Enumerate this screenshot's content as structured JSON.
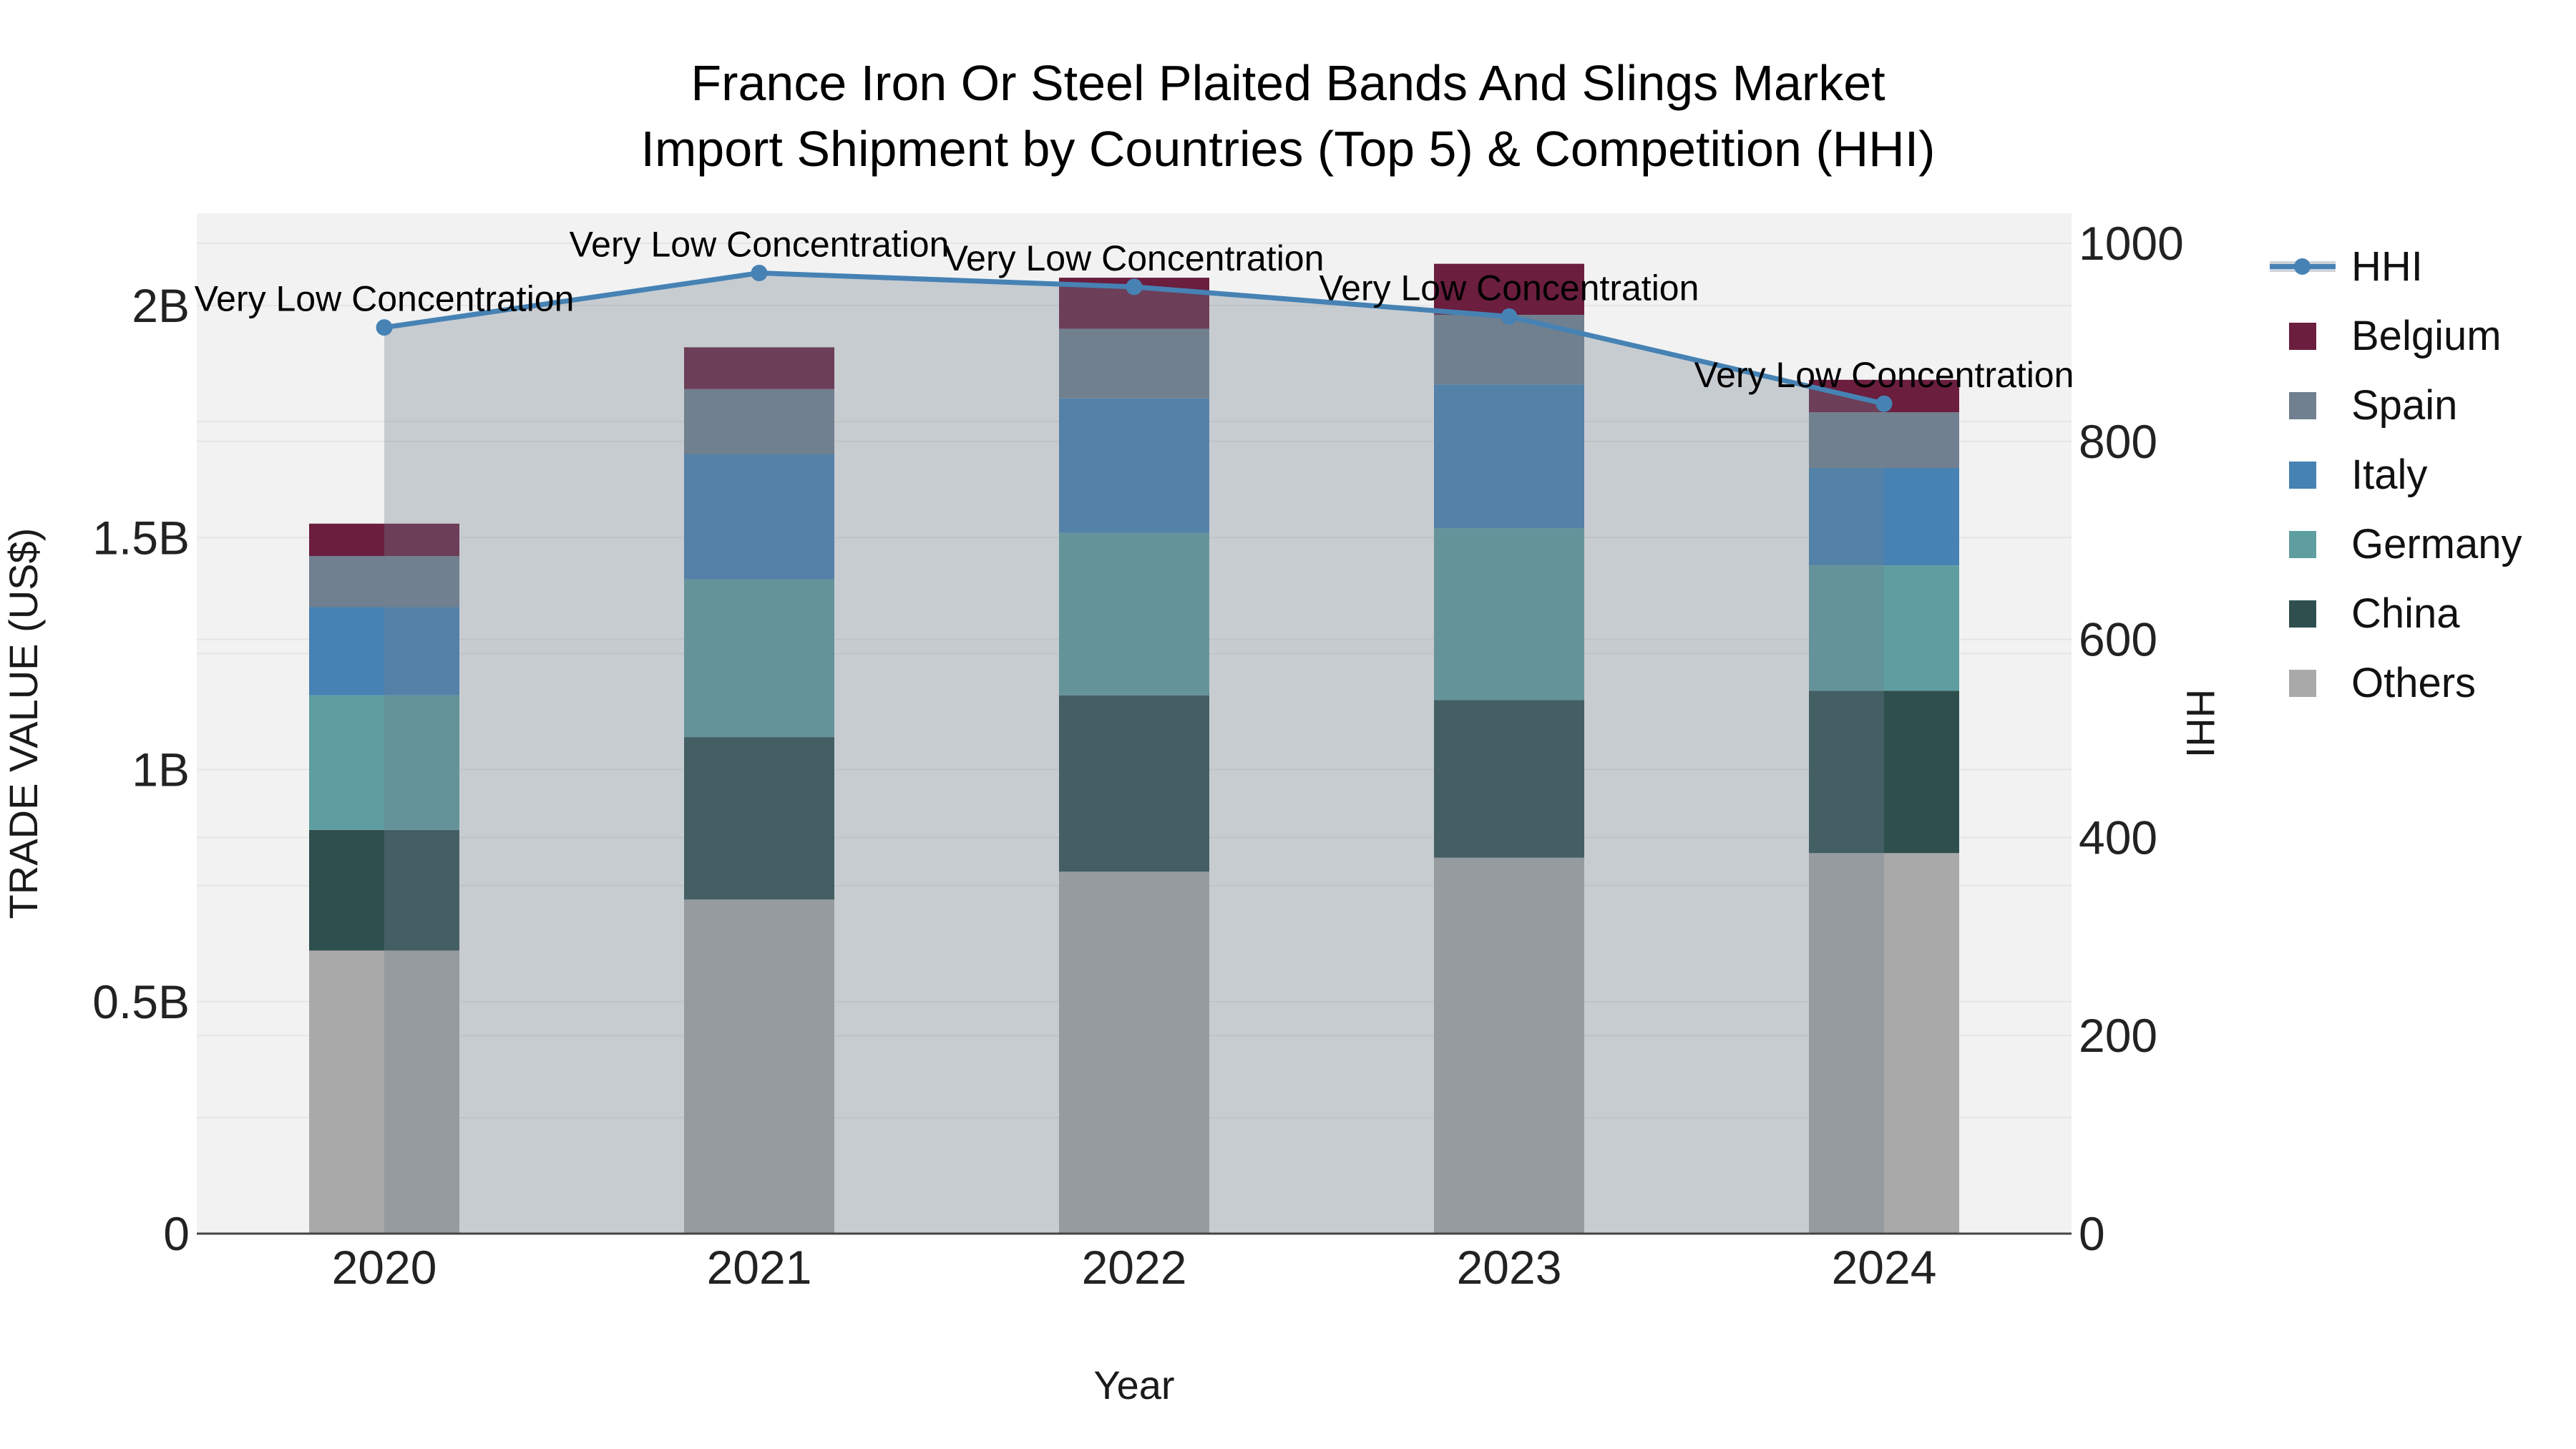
{
  "chart_data": {
    "type": "bar+line",
    "title": "France Iron Or Steel Plaited Bands And Slings Market",
    "subtitle": "Import Shipment by Countries (Top 5) & Competition (HHI)",
    "xlabel": "Year",
    "ylabel_left": "TRADE VALUE (US$)",
    "ylabel_right": "HHI",
    "unit": "US$ billions",
    "categories": [
      "2020",
      "2021",
      "2022",
      "2023",
      "2024"
    ],
    "stack_bottom_to_top": [
      "Others",
      "China",
      "Germany",
      "Italy",
      "Spain",
      "Belgium"
    ],
    "series": [
      {
        "name": "Belgium",
        "color": "#6B1E3E",
        "values": [
          0.07,
          0.09,
          0.11,
          0.11,
          0.07
        ]
      },
      {
        "name": "Spain",
        "color": "#708090",
        "values": [
          0.11,
          0.14,
          0.15,
          0.15,
          0.12
        ]
      },
      {
        "name": "Italy",
        "color": "#4682B4",
        "values": [
          0.19,
          0.27,
          0.29,
          0.31,
          0.21
        ]
      },
      {
        "name": "Germany",
        "color": "#5F9EA0",
        "values": [
          0.29,
          0.34,
          0.35,
          0.37,
          0.27
        ]
      },
      {
        "name": "China",
        "color": "#2F4F4F",
        "values": [
          0.26,
          0.35,
          0.38,
          0.34,
          0.35
        ]
      },
      {
        "name": "Others",
        "color": "#A9A9A9",
        "values": [
          0.61,
          0.72,
          0.78,
          0.81,
          0.82
        ]
      }
    ],
    "bar_totals": [
      1.53,
      1.91,
      2.06,
      2.09,
      1.84
    ],
    "line_series": {
      "name": "HHI",
      "axis": "right",
      "color": "#4682B4",
      "fill_color": "rgba(112,128,144,0.33)",
      "values": [
        915,
        970,
        956,
        926,
        838
      ]
    },
    "annotations": [
      "Very Low Concentration",
      "Very Low Concentration",
      "Very Low Concentration",
      "Very Low Concentration",
      "Very Low Concentration"
    ],
    "y_left": {
      "tick_labels": [
        "0",
        "0.5B",
        "1B",
        "1.5B",
        "2B"
      ],
      "tick_values": [
        0,
        0.5,
        1,
        1.5,
        2
      ],
      "max": 2.2,
      "minor_step": 0.25
    },
    "y_right": {
      "tick_labels": [
        "0",
        "200",
        "400",
        "600",
        "800",
        "1000"
      ],
      "tick_values": [
        0,
        200,
        400,
        600,
        800,
        1000
      ],
      "max": 1030
    },
    "legend": [
      "HHI",
      "Belgium",
      "Spain",
      "Italy",
      "Germany",
      "China",
      "Others"
    ],
    "legend_position": "right",
    "grid": true,
    "plot_background": "#f2f2f2",
    "gridline_color": "#e5e5e5",
    "axisline_color": "#444444"
  }
}
